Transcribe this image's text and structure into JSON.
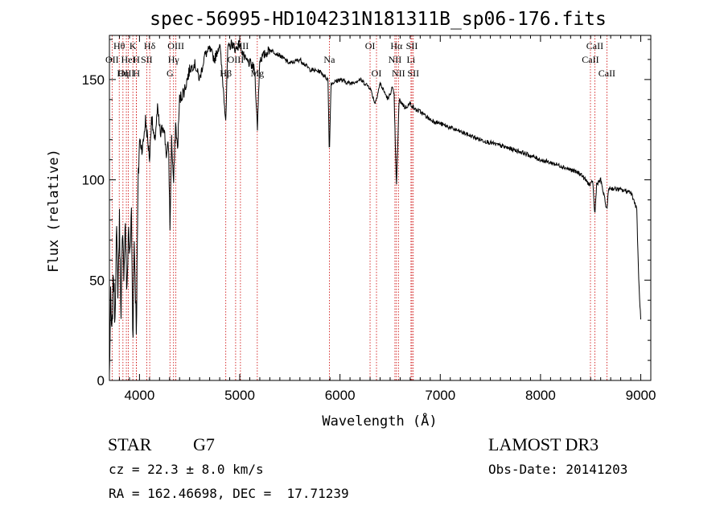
{
  "chart_data": {
    "type": "line",
    "title": "spec-56995-HD104231N181311B_sp06-176.fits",
    "xlabel": "Wavelength (Å)",
    "ylabel": "Flux (relative)",
    "xlim": [
      3700,
      9100
    ],
    "ylim": [
      0,
      172
    ],
    "xticks": [
      4000,
      5000,
      6000,
      7000,
      8000,
      9000
    ],
    "yticks": [
      0,
      50,
      100,
      150
    ],
    "grid": false,
    "line_color": "#000000",
    "marker_color": "#cc0000",
    "spectral_lines": [
      {
        "label": "Hθ",
        "x": 3798,
        "row": 0
      },
      {
        "label": "OII",
        "x": 3727,
        "row": 1
      },
      {
        "label": "OIII",
        "x": 3869,
        "row": 2
      },
      {
        "label": "K",
        "x": 3934,
        "row": 0
      },
      {
        "label": "H",
        "x": 3969,
        "row": 1
      },
      {
        "label": "HeI",
        "x": 3889,
        "row": 1
      },
      {
        "label": "Hη",
        "x": 3835,
        "row": 2
      },
      {
        "label": "H",
        "x": 3970,
        "row": 2
      },
      {
        "label": "Hδ",
        "x": 4102,
        "row": 0
      },
      {
        "label": "SII",
        "x": 4072,
        "row": 1
      },
      {
        "label": "OIII",
        "x": 4363,
        "row": 0
      },
      {
        "label": "Hγ",
        "x": 4340,
        "row": 1
      },
      {
        "label": "G",
        "x": 4304,
        "row": 2
      },
      {
        "label": "Hβ",
        "x": 4861,
        "row": 2
      },
      {
        "label": "OIII",
        "x": 4959,
        "row": 1
      },
      {
        "label": "OIII",
        "x": 5007,
        "row": 0
      },
      {
        "label": "Mg",
        "x": 5175,
        "row": 2
      },
      {
        "label": "Na",
        "x": 5894,
        "row": 1
      },
      {
        "label": "OI",
        "x": 6300,
        "row": 0
      },
      {
        "label": "OI",
        "x": 6364,
        "row": 2
      },
      {
        "label": "NII",
        "x": 6548,
        "row": 1
      },
      {
        "label": "Hα",
        "x": 6563,
        "row": 0
      },
      {
        "label": "NII",
        "x": 6583,
        "row": 2
      },
      {
        "label": "Li",
        "x": 6708,
        "row": 1
      },
      {
        "label": "SII",
        "x": 6717,
        "row": 0
      },
      {
        "label": "SII",
        "x": 6731,
        "row": 2
      },
      {
        "label": "CaII",
        "x": 8498,
        "row": 1
      },
      {
        "label": "CaII",
        "x": 8542,
        "row": 0
      },
      {
        "label": "CaII",
        "x": 8662,
        "row": 2
      }
    ],
    "anchors": [
      [
        3700,
        2
      ],
      [
        3712,
        40
      ],
      [
        3725,
        20
      ],
      [
        3740,
        55
      ],
      [
        3755,
        30
      ],
      [
        3770,
        75
      ],
      [
        3785,
        45
      ],
      [
        3800,
        80
      ],
      [
        3815,
        35
      ],
      [
        3830,
        70
      ],
      [
        3845,
        55
      ],
      [
        3860,
        80
      ],
      [
        3875,
        40
      ],
      [
        3890,
        78
      ],
      [
        3905,
        60
      ],
      [
        3920,
        85
      ],
      [
        3934,
        20
      ],
      [
        3948,
        70
      ],
      [
        3969,
        25
      ],
      [
        3985,
        95
      ],
      [
        4000,
        120
      ],
      [
        4030,
        115
      ],
      [
        4060,
        130
      ],
      [
        4102,
        110
      ],
      [
        4120,
        132
      ],
      [
        4150,
        118
      ],
      [
        4180,
        135
      ],
      [
        4210,
        122
      ],
      [
        4240,
        128
      ],
      [
        4270,
        112
      ],
      [
        4290,
        118
      ],
      [
        4304,
        76
      ],
      [
        4320,
        120
      ],
      [
        4340,
        98
      ],
      [
        4360,
        128
      ],
      [
        4380,
        115
      ],
      [
        4400,
        140
      ],
      [
        4450,
        145
      ],
      [
        4500,
        155
      ],
      [
        4550,
        158
      ],
      [
        4600,
        150
      ],
      [
        4650,
        162
      ],
      [
        4700,
        165
      ],
      [
        4750,
        160
      ],
      [
        4800,
        168
      ],
      [
        4861,
        130
      ],
      [
        4880,
        165
      ],
      [
        4920,
        168
      ],
      [
        4960,
        165
      ],
      [
        5000,
        168
      ],
      [
        5050,
        160
      ],
      [
        5100,
        158
      ],
      [
        5150,
        155
      ],
      [
        5175,
        125
      ],
      [
        5200,
        160
      ],
      [
        5300,
        165
      ],
      [
        5400,
        162
      ],
      [
        5500,
        158
      ],
      [
        5600,
        160
      ],
      [
        5700,
        155
      ],
      [
        5800,
        154
      ],
      [
        5880,
        150
      ],
      [
        5894,
        112
      ],
      [
        5910,
        148
      ],
      [
        6000,
        150
      ],
      [
        6100,
        148
      ],
      [
        6200,
        150
      ],
      [
        6300,
        146
      ],
      [
        6350,
        138
      ],
      [
        6400,
        148
      ],
      [
        6480,
        140
      ],
      [
        6520,
        146
      ],
      [
        6540,
        142
      ],
      [
        6563,
        96
      ],
      [
        6590,
        140
      ],
      [
        6650,
        136
      ],
      [
        6700,
        138
      ],
      [
        6750,
        135
      ],
      [
        6800,
        134
      ],
      [
        6900,
        130
      ],
      [
        7000,
        128
      ],
      [
        7200,
        124
      ],
      [
        7400,
        120
      ],
      [
        7600,
        117
      ],
      [
        7800,
        114
      ],
      [
        8000,
        110
      ],
      [
        8200,
        107
      ],
      [
        8400,
        103
      ],
      [
        8498,
        97
      ],
      [
        8520,
        100
      ],
      [
        8542,
        82
      ],
      [
        8560,
        98
      ],
      [
        8600,
        100
      ],
      [
        8662,
        85
      ],
      [
        8680,
        96
      ],
      [
        8800,
        95
      ],
      [
        8900,
        94
      ],
      [
        8930,
        90
      ],
      [
        8960,
        85
      ],
      [
        8980,
        50
      ],
      [
        9000,
        30
      ]
    ]
  },
  "info": {
    "object_class": "STAR",
    "subclass": "G7",
    "survey": "LAMOST DR3",
    "redshift": "cz = 22.3 ± 8.0 km/s",
    "obs_date": "Obs-Date: 20141203",
    "coords": "RA = 162.46698, DEC =  17.71239"
  }
}
